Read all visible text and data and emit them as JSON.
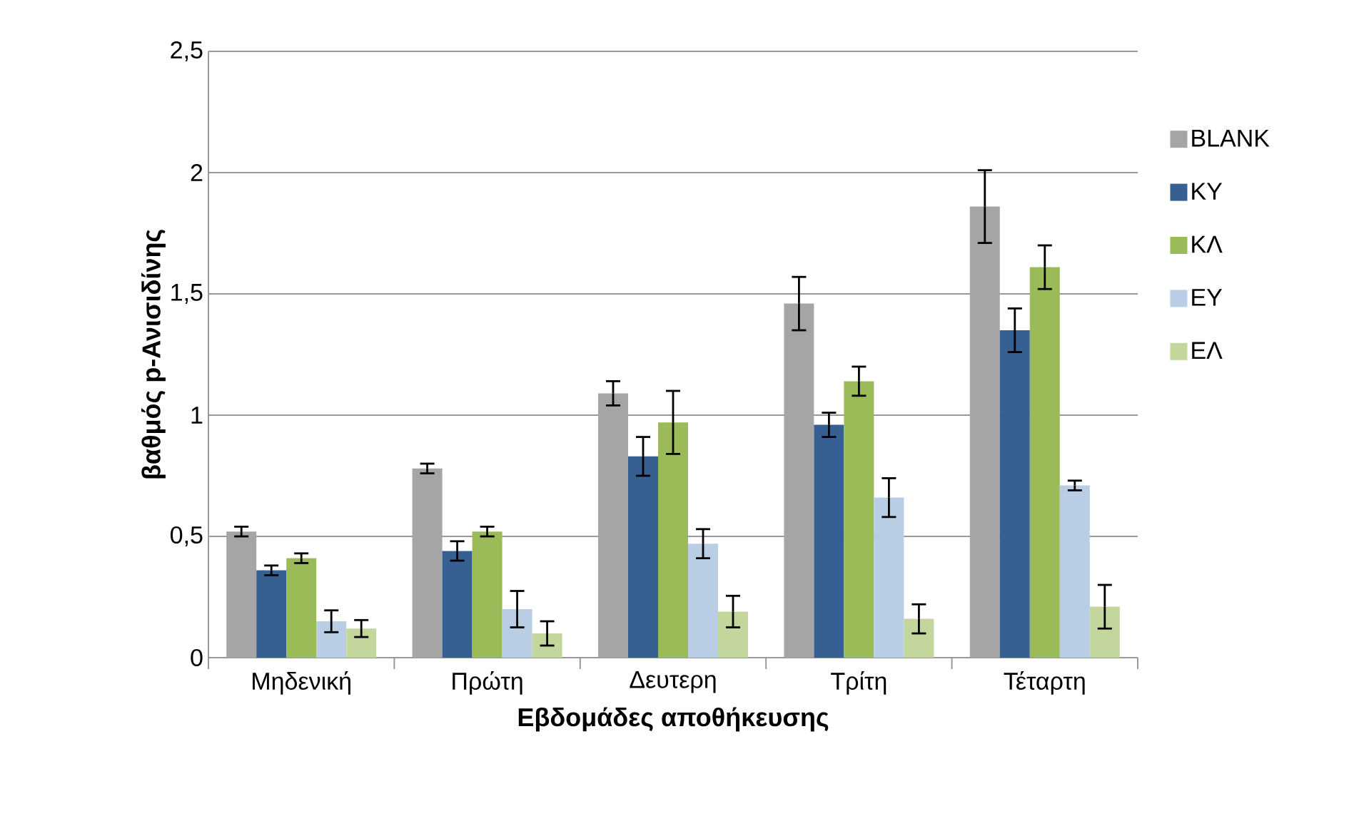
{
  "chart_data": {
    "type": "bar",
    "xlabel": "Εβδομάδες αποθήκευσης",
    "ylabel": "βαθμός p-Ανισιδίνης",
    "categories": [
      "Μηδενική",
      "Πρώτη",
      "Δευτερη",
      "Τρίτη",
      "Τέταρτη"
    ],
    "series": [
      {
        "name": "BLANK",
        "color": "#a5a5a5",
        "values": [
          0.52,
          0.78,
          1.09,
          1.46,
          1.86
        ],
        "errors": [
          0.02,
          0.02,
          0.05,
          0.11,
          0.15
        ]
      },
      {
        "name": "ΚΥ",
        "color": "#376092",
        "values": [
          0.36,
          0.44,
          0.83,
          0.96,
          1.35
        ],
        "errors": [
          0.02,
          0.04,
          0.08,
          0.05,
          0.09
        ]
      },
      {
        "name": "ΚΛ",
        "color": "#9bbb59",
        "values": [
          0.41,
          0.52,
          0.97,
          1.14,
          1.61
        ],
        "errors": [
          0.02,
          0.02,
          0.13,
          0.06,
          0.09
        ]
      },
      {
        "name": "ΕΥ",
        "color": "#b9cde5",
        "values": [
          0.15,
          0.2,
          0.47,
          0.66,
          0.71
        ],
        "errors": [
          0.045,
          0.075,
          0.06,
          0.08,
          0.02
        ]
      },
      {
        "name": "ΕΛ",
        "color": "#c3d69b",
        "values": [
          0.12,
          0.1,
          0.19,
          0.16,
          0.21
        ],
        "errors": [
          0.035,
          0.05,
          0.065,
          0.06,
          0.09
        ]
      }
    ],
    "ylim": [
      0,
      2.5
    ],
    "yticks": [
      0,
      {
        "value": 0.5,
        "label": "0,5"
      },
      1,
      {
        "value": 1.5,
        "label": "1,5"
      },
      2,
      {
        "value": 2.5,
        "label": "2,5"
      }
    ],
    "grid": "y",
    "legend": "right"
  }
}
